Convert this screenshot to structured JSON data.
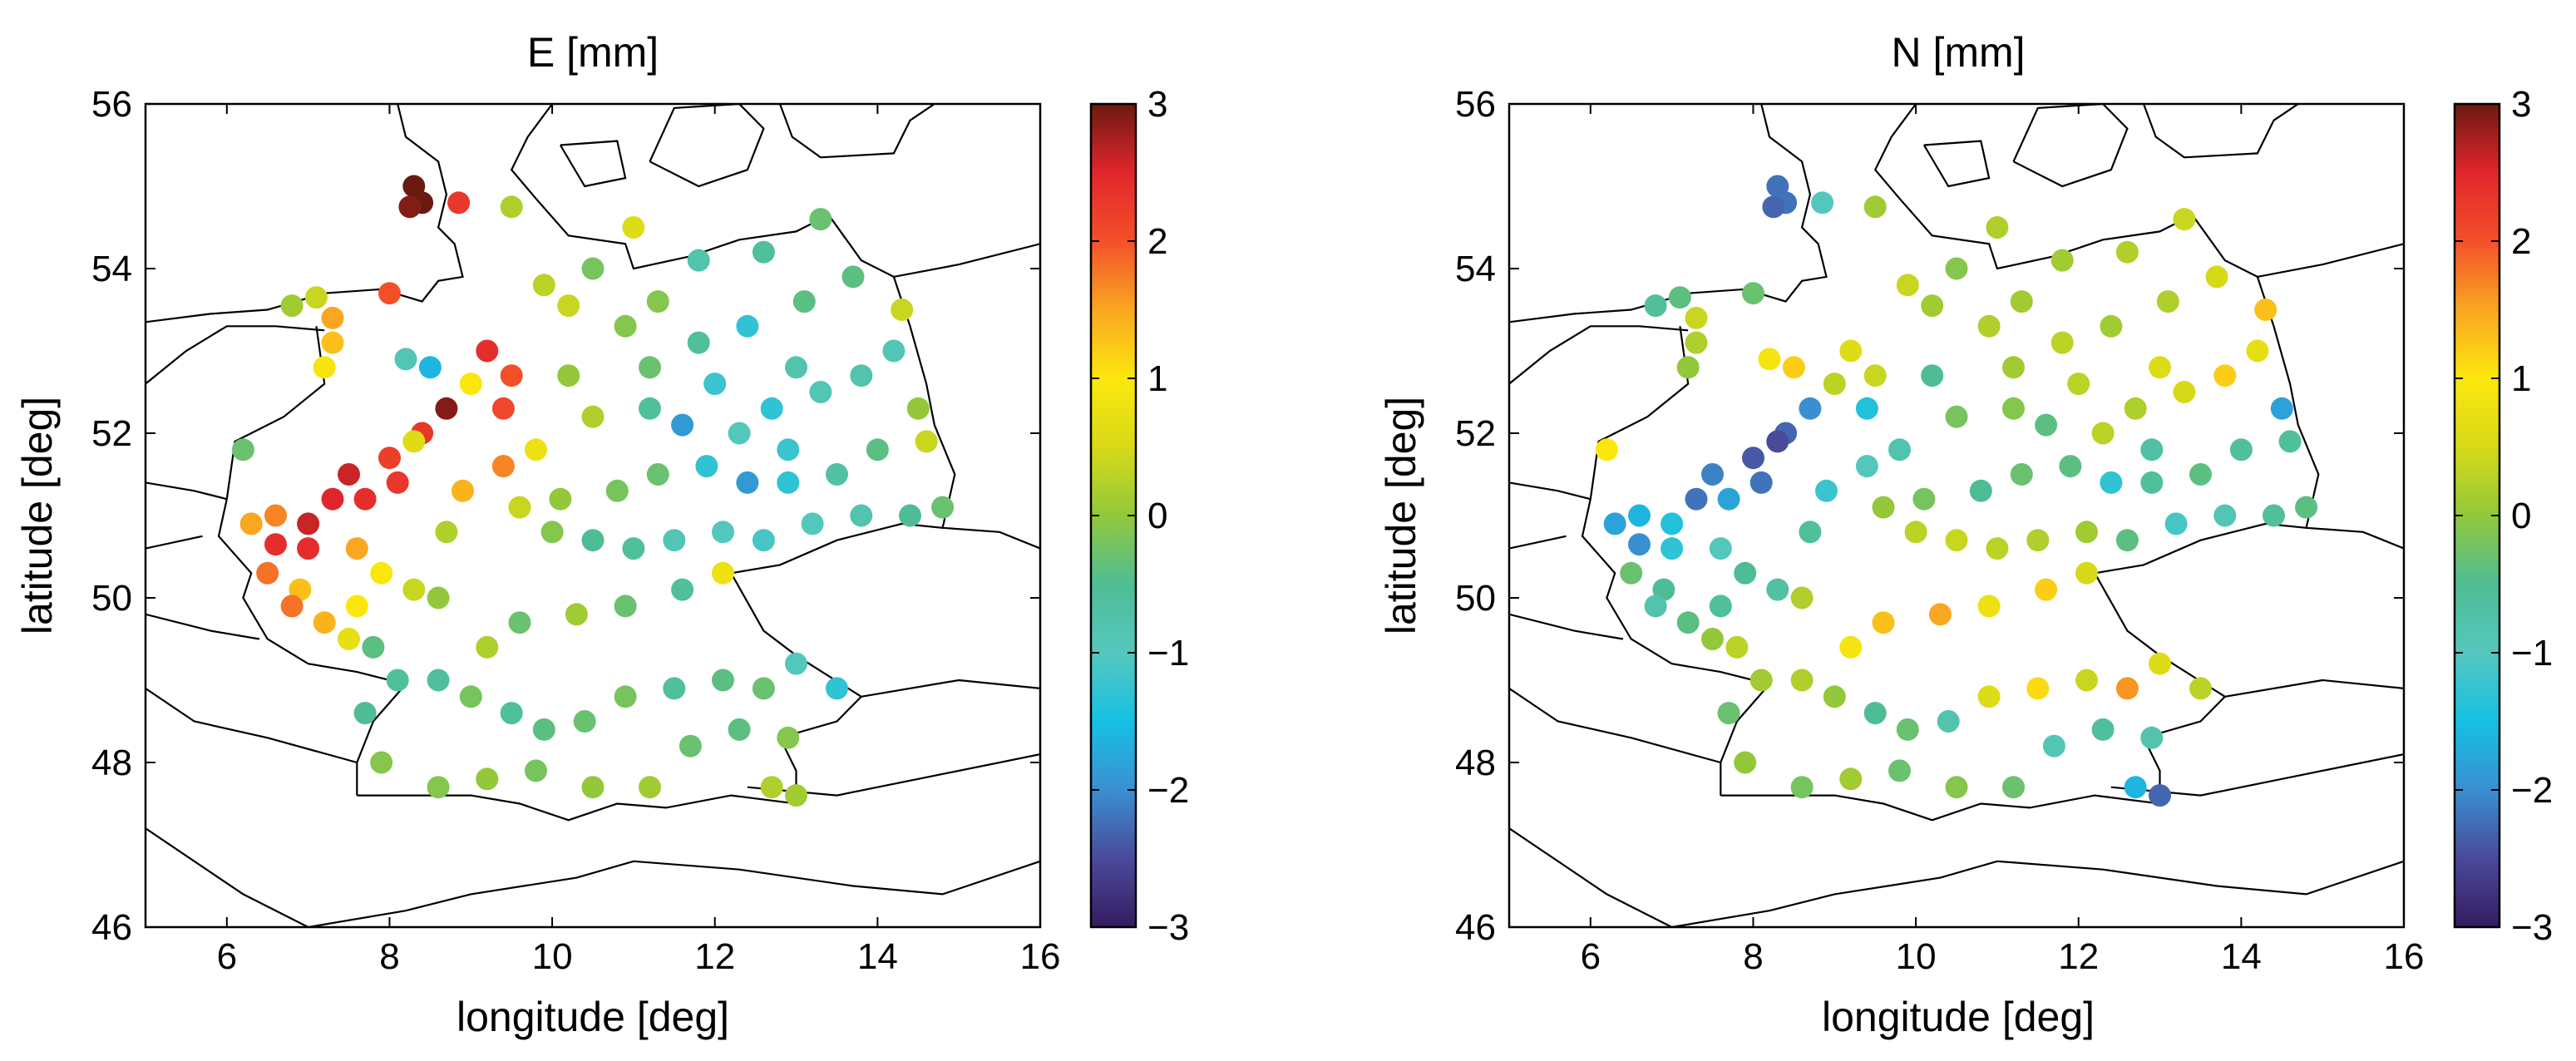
{
  "colors": {
    "colormap": [
      "#351b61",
      "#4a4a9a",
      "#3a8fd0",
      "#16c0e4",
      "#54c7bd",
      "#4fbd94",
      "#92c83a",
      "#d7d918",
      "#fce70d",
      "#f9a621",
      "#f3502a",
      "#e1262b",
      "#6b1a12"
    ],
    "coastline": "#000000",
    "point_edge": "none"
  },
  "chart_data": [
    {
      "type": "scatter",
      "title": "E [mm]",
      "xlabel": "longitude [deg]",
      "ylabel": "latitude [deg]",
      "xlim": [
        5,
        16
      ],
      "ylim": [
        46,
        56
      ],
      "xticks": [
        "6",
        "8",
        "10",
        "12",
        "14",
        "16"
      ],
      "yticks": [
        "46",
        "48",
        "50",
        "52",
        "54",
        "56"
      ],
      "colorbar": {
        "min": -3,
        "max": 3,
        "ticks": [
          "−3",
          "−2",
          "−1",
          "0",
          "1",
          "2",
          "3"
        ]
      },
      "grid": false,
      "points": [
        [
          8.3,
          55.0,
          3.0
        ],
        [
          8.4,
          54.8,
          3.0
        ],
        [
          8.25,
          54.75,
          2.9
        ],
        [
          8.85,
          54.8,
          2.3
        ],
        [
          9.5,
          54.75,
          0.2
        ],
        [
          11.0,
          54.5,
          0.6
        ],
        [
          13.3,
          54.6,
          -0.3
        ],
        [
          8.0,
          53.7,
          2.0
        ],
        [
          6.8,
          53.55,
          0.1
        ],
        [
          7.1,
          53.65,
          0.4
        ],
        [
          7.3,
          53.4,
          1.5
        ],
        [
          7.3,
          53.1,
          1.3
        ],
        [
          7.2,
          52.8,
          0.9
        ],
        [
          8.2,
          52.9,
          -0.9
        ],
        [
          8.5,
          52.8,
          -1.6
        ],
        [
          9.2,
          53.0,
          2.4
        ],
        [
          9.5,
          52.7,
          2.0
        ],
        [
          9.0,
          52.6,
          1.0
        ],
        [
          8.7,
          52.3,
          2.9
        ],
        [
          8.4,
          52.0,
          2.3
        ],
        [
          8.0,
          51.7,
          2.2
        ],
        [
          7.5,
          51.5,
          2.6
        ],
        [
          7.7,
          51.2,
          2.4
        ],
        [
          7.3,
          51.2,
          2.5
        ],
        [
          7.0,
          50.9,
          2.6
        ],
        [
          6.6,
          50.65,
          2.4
        ],
        [
          6.3,
          50.9,
          1.5
        ],
        [
          6.6,
          51.0,
          1.7
        ],
        [
          6.2,
          51.8,
          -0.3
        ],
        [
          6.5,
          50.3,
          1.8
        ],
        [
          6.9,
          50.1,
          1.3
        ],
        [
          7.2,
          49.7,
          1.4
        ],
        [
          7.5,
          49.5,
          0.7
        ],
        [
          7.8,
          49.4,
          -0.4
        ],
        [
          7.9,
          50.3,
          1.0
        ],
        [
          8.3,
          50.1,
          0.4
        ],
        [
          8.6,
          50.0,
          0.0
        ],
        [
          8.7,
          50.8,
          0.2
        ],
        [
          8.9,
          51.3,
          1.4
        ],
        [
          9.4,
          51.6,
          1.7
        ],
        [
          9.8,
          51.8,
          0.8
        ],
        [
          10.5,
          52.2,
          0.2
        ],
        [
          11.2,
          52.3,
          -0.6
        ],
        [
          11.6,
          52.1,
          -1.9
        ],
        [
          12.3,
          52.0,
          -1.0
        ],
        [
          12.7,
          52.3,
          -1.3
        ],
        [
          13.3,
          52.5,
          -0.9
        ],
        [
          13.8,
          52.7,
          -0.8
        ],
        [
          14.2,
          53.0,
          -0.9
        ],
        [
          13.1,
          53.6,
          -0.4
        ],
        [
          12.4,
          53.3,
          -1.3
        ],
        [
          11.8,
          53.1,
          -0.6
        ],
        [
          11.3,
          53.6,
          -0.1
        ],
        [
          10.2,
          53.55,
          0.4
        ],
        [
          9.9,
          53.8,
          0.3
        ],
        [
          10.5,
          54.0,
          -0.2
        ],
        [
          11.8,
          54.1,
          -0.8
        ],
        [
          12.6,
          54.2,
          -0.6
        ],
        [
          13.7,
          53.9,
          -0.4
        ],
        [
          14.3,
          53.5,
          0.4
        ],
        [
          14.5,
          52.3,
          0.0
        ],
        [
          14.0,
          51.8,
          -0.4
        ],
        [
          13.5,
          51.5,
          -0.7
        ],
        [
          12.9,
          51.4,
          -1.3
        ],
        [
          12.4,
          51.4,
          -1.9
        ],
        [
          11.9,
          51.6,
          -1.3
        ],
        [
          11.3,
          51.5,
          -0.3
        ],
        [
          10.8,
          51.3,
          -0.2
        ],
        [
          10.1,
          51.2,
          0.0
        ],
        [
          10.0,
          50.8,
          -0.1
        ],
        [
          10.5,
          50.7,
          -0.5
        ],
        [
          11.0,
          50.6,
          -0.6
        ],
        [
          11.5,
          50.7,
          -0.9
        ],
        [
          12.1,
          50.8,
          -1.0
        ],
        [
          12.6,
          50.7,
          -1.1
        ],
        [
          13.2,
          50.9,
          -1.0
        ],
        [
          13.8,
          51.0,
          -0.8
        ],
        [
          14.4,
          51.0,
          -0.5
        ],
        [
          14.8,
          51.1,
          -0.3
        ],
        [
          14.6,
          51.9,
          0.4
        ],
        [
          12.1,
          50.3,
          0.8
        ],
        [
          11.6,
          50.1,
          -0.6
        ],
        [
          10.9,
          49.9,
          -0.3
        ],
        [
          10.3,
          49.8,
          0.1
        ],
        [
          9.6,
          49.7,
          -0.3
        ],
        [
          9.2,
          49.4,
          0.2
        ],
        [
          8.6,
          49.0,
          -0.6
        ],
        [
          9.0,
          48.8,
          -0.2
        ],
        [
          9.5,
          48.6,
          -0.6
        ],
        [
          9.9,
          48.4,
          -0.4
        ],
        [
          10.4,
          48.5,
          -0.3
        ],
        [
          10.9,
          48.8,
          -0.2
        ],
        [
          11.5,
          48.9,
          -0.6
        ],
        [
          12.1,
          49.0,
          -0.4
        ],
        [
          12.6,
          48.9,
          -0.3
        ],
        [
          13.0,
          49.2,
          -1.0
        ],
        [
          13.5,
          48.9,
          -1.3
        ],
        [
          12.9,
          48.3,
          -0.1
        ],
        [
          12.3,
          48.4,
          -0.4
        ],
        [
          11.7,
          48.2,
          -0.3
        ],
        [
          11.2,
          47.7,
          0.1
        ],
        [
          10.5,
          47.7,
          0.0
        ],
        [
          9.8,
          47.9,
          -0.2
        ],
        [
          9.2,
          47.8,
          0.0
        ],
        [
          8.6,
          47.7,
          -0.1
        ],
        [
          7.9,
          48.0,
          -0.1
        ],
        [
          7.7,
          48.6,
          -0.5
        ],
        [
          8.1,
          49.0,
          -0.6
        ],
        [
          12.7,
          47.7,
          0.2
        ],
        [
          13.0,
          47.6,
          0.1
        ],
        [
          10.9,
          53.3,
          -0.1
        ],
        [
          12.0,
          52.6,
          -1.2
        ],
        [
          13.0,
          52.8,
          -0.8
        ],
        [
          9.4,
          52.3,
          2.1
        ],
        [
          8.1,
          51.4,
          2.3
        ],
        [
          7.0,
          50.6,
          2.4
        ],
        [
          7.6,
          50.6,
          1.5
        ],
        [
          6.8,
          49.9,
          1.8
        ],
        [
          7.6,
          49.9,
          1.0
        ],
        [
          8.3,
          51.9,
          0.6
        ],
        [
          9.6,
          51.1,
          0.4
        ],
        [
          10.2,
          52.7,
          0.0
        ],
        [
          11.2,
          52.8,
          -0.3
        ],
        [
          12.9,
          51.8,
          -1.2
        ]
      ]
    },
    {
      "type": "scatter",
      "title": "N [mm]",
      "xlabel": "longitude [deg]",
      "ylabel": "latitude [deg]",
      "xlim": [
        5,
        16
      ],
      "ylim": [
        46,
        56
      ],
      "xticks": [
        "6",
        "8",
        "10",
        "12",
        "14",
        "16"
      ],
      "yticks": [
        "46",
        "48",
        "50",
        "52",
        "54",
        "56"
      ],
      "colorbar": {
        "min": -3,
        "max": 3,
        "ticks": [
          "−3",
          "−2",
          "−1",
          "0",
          "1",
          "2",
          "3"
        ]
      },
      "grid": false,
      "points": [
        [
          8.3,
          55.0,
          -2.2
        ],
        [
          8.4,
          54.8,
          -2.2
        ],
        [
          8.25,
          54.75,
          -2.3
        ],
        [
          8.85,
          54.8,
          -1.0
        ],
        [
          9.5,
          54.75,
          0.1
        ],
        [
          11.0,
          54.5,
          0.2
        ],
        [
          13.3,
          54.6,
          0.4
        ],
        [
          8.0,
          53.7,
          -0.3
        ],
        [
          6.8,
          53.55,
          -0.6
        ],
        [
          7.1,
          53.65,
          -0.4
        ],
        [
          7.3,
          53.4,
          0.4
        ],
        [
          7.3,
          53.1,
          0.2
        ],
        [
          7.2,
          52.8,
          0.0
        ],
        [
          8.2,
          52.9,
          0.9
        ],
        [
          8.5,
          52.8,
          1.2
        ],
        [
          9.2,
          53.0,
          0.6
        ],
        [
          9.5,
          52.7,
          0.4
        ],
        [
          9.0,
          52.6,
          0.3
        ],
        [
          8.7,
          52.3,
          -2.0
        ],
        [
          8.4,
          52.0,
          -2.3
        ],
        [
          8.0,
          51.7,
          -2.4
        ],
        [
          7.5,
          51.5,
          -2.1
        ],
        [
          7.7,
          51.2,
          -1.8
        ],
        [
          7.3,
          51.2,
          -2.2
        ],
        [
          7.0,
          50.9,
          -1.4
        ],
        [
          6.6,
          50.65,
          -2.0
        ],
        [
          6.3,
          50.9,
          -1.8
        ],
        [
          6.6,
          51.0,
          -1.6
        ],
        [
          6.2,
          51.8,
          1.0
        ],
        [
          6.5,
          50.3,
          -0.3
        ],
        [
          6.9,
          50.1,
          -0.5
        ],
        [
          7.2,
          49.7,
          -0.4
        ],
        [
          7.5,
          49.5,
          0.0
        ],
        [
          7.8,
          49.4,
          0.3
        ],
        [
          7.9,
          50.3,
          -0.5
        ],
        [
          8.3,
          50.1,
          -0.7
        ],
        [
          8.6,
          50.0,
          0.2
        ],
        [
          8.7,
          50.8,
          -0.6
        ],
        [
          8.9,
          51.3,
          -1.2
        ],
        [
          9.4,
          51.6,
          -1.0
        ],
        [
          9.8,
          51.8,
          -0.8
        ],
        [
          10.5,
          52.2,
          -0.2
        ],
        [
          11.2,
          52.3,
          -0.1
        ],
        [
          11.6,
          52.1,
          -0.4
        ],
        [
          12.3,
          52.0,
          0.3
        ],
        [
          12.7,
          52.3,
          0.2
        ],
        [
          13.3,
          52.5,
          0.5
        ],
        [
          13.8,
          52.7,
          1.2
        ],
        [
          14.2,
          53.0,
          0.7
        ],
        [
          13.1,
          53.6,
          0.2
        ],
        [
          12.4,
          53.3,
          0.1
        ],
        [
          11.8,
          53.1,
          0.3
        ],
        [
          11.3,
          53.6,
          0.1
        ],
        [
          10.2,
          53.55,
          0.1
        ],
        [
          9.9,
          53.8,
          0.4
        ],
        [
          10.5,
          54.0,
          -0.1
        ],
        [
          11.8,
          54.1,
          0.1
        ],
        [
          12.6,
          54.2,
          0.2
        ],
        [
          13.7,
          53.9,
          0.5
        ],
        [
          14.3,
          53.5,
          1.3
        ],
        [
          14.5,
          52.3,
          -1.8
        ],
        [
          14.0,
          51.8,
          -0.6
        ],
        [
          13.5,
          51.5,
          -0.4
        ],
        [
          12.9,
          51.4,
          -0.6
        ],
        [
          12.4,
          51.4,
          -1.3
        ],
        [
          11.9,
          51.6,
          -0.4
        ],
        [
          11.3,
          51.5,
          -0.3
        ],
        [
          10.8,
          51.3,
          -0.5
        ],
        [
          10.1,
          51.2,
          -0.2
        ],
        [
          10.0,
          50.8,
          0.3
        ],
        [
          10.5,
          50.7,
          0.4
        ],
        [
          11.0,
          50.6,
          0.3
        ],
        [
          11.5,
          50.7,
          0.2
        ],
        [
          12.1,
          50.8,
          0.1
        ],
        [
          12.6,
          50.7,
          -0.4
        ],
        [
          13.2,
          50.9,
          -1.1
        ],
        [
          13.8,
          51.0,
          -0.9
        ],
        [
          14.4,
          51.0,
          -0.6
        ],
        [
          14.8,
          51.1,
          -0.4
        ],
        [
          14.6,
          51.9,
          -0.6
        ],
        [
          12.1,
          50.3,
          0.5
        ],
        [
          11.6,
          50.1,
          1.2
        ],
        [
          10.9,
          49.9,
          0.8
        ],
        [
          10.3,
          49.8,
          1.5
        ],
        [
          9.6,
          49.7,
          1.3
        ],
        [
          9.2,
          49.4,
          0.9
        ],
        [
          8.6,
          49.0,
          0.2
        ],
        [
          9.0,
          48.8,
          0.0
        ],
        [
          9.5,
          48.6,
          -0.5
        ],
        [
          9.9,
          48.4,
          -0.3
        ],
        [
          10.4,
          48.5,
          -0.8
        ],
        [
          10.9,
          48.8,
          0.6
        ],
        [
          11.5,
          48.9,
          1.1
        ],
        [
          12.1,
          49.0,
          0.4
        ],
        [
          12.6,
          48.9,
          1.6
        ],
        [
          13.0,
          49.2,
          0.6
        ],
        [
          13.5,
          48.9,
          0.3
        ],
        [
          12.9,
          48.3,
          -0.8
        ],
        [
          12.3,
          48.4,
          -0.6
        ],
        [
          11.7,
          48.2,
          -0.9
        ],
        [
          11.2,
          47.7,
          -0.3
        ],
        [
          10.5,
          47.7,
          -0.1
        ],
        [
          9.8,
          47.9,
          -0.3
        ],
        [
          9.2,
          47.8,
          0.1
        ],
        [
          8.6,
          47.7,
          -0.2
        ],
        [
          7.9,
          48.0,
          0.0
        ],
        [
          7.7,
          48.6,
          -0.3
        ],
        [
          8.1,
          49.0,
          0.1
        ],
        [
          12.7,
          47.7,
          -1.6
        ],
        [
          13.0,
          47.6,
          -2.3
        ],
        [
          10.9,
          53.3,
          0.2
        ],
        [
          12.0,
          52.6,
          0.3
        ],
        [
          13.0,
          52.8,
          0.6
        ],
        [
          9.4,
          52.3,
          -1.4
        ],
        [
          8.1,
          51.4,
          -2.2
        ],
        [
          7.0,
          50.6,
          -1.3
        ],
        [
          7.6,
          50.6,
          -1.0
        ],
        [
          6.8,
          49.9,
          -0.8
        ],
        [
          7.6,
          49.9,
          -0.6
        ],
        [
          8.3,
          51.9,
          -2.5
        ],
        [
          9.6,
          51.1,
          0.0
        ],
        [
          10.2,
          52.7,
          -0.5
        ],
        [
          11.2,
          52.8,
          0.1
        ],
        [
          12.9,
          51.8,
          -0.7
        ]
      ]
    }
  ]
}
